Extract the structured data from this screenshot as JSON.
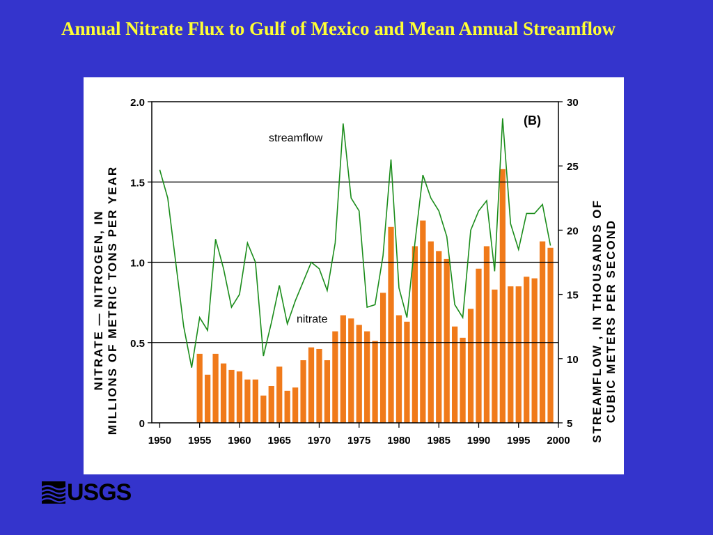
{
  "slide": {
    "title": "Annual Nitrate Flux to Gulf of Mexico and Mean Annual Streamflow"
  },
  "logo": {
    "text": "USGS",
    "icon": "usgs-wave-icon"
  },
  "colors": {
    "background": "#3434cc",
    "title": "#ffff33",
    "bar": "#f07a1a",
    "line": "#1a8c1a"
  },
  "chart_data": {
    "type": "bar+line",
    "panel_label": "(B)",
    "annotations": {
      "line_label": "streamflow",
      "bar_label": "nitrate"
    },
    "y_left": {
      "label_line1": "NITRATE — NITROGEN, IN",
      "label_line2": "MILLIONS OF METRIC TONS PER YEAR",
      "lim": [
        0,
        2.0
      ],
      "ticks": [
        0,
        0.5,
        1.0,
        1.5,
        2.0
      ],
      "tick_labels": [
        "0",
        "0.5",
        "1.0",
        "1.5",
        "2.0"
      ]
    },
    "y_right": {
      "label_line1": "STREAMFLOW , IN THOUSANDS OF",
      "label_line2": "CUBIC METERS PER SECOND",
      "lim": [
        5,
        30
      ],
      "ticks": [
        5,
        10,
        15,
        20,
        25,
        30
      ],
      "tick_labels": [
        "5",
        "10",
        "15",
        "20",
        "25",
        "30"
      ]
    },
    "x": {
      "lim": [
        1949,
        2000
      ],
      "ticks": [
        1950,
        1955,
        1960,
        1965,
        1970,
        1975,
        1980,
        1985,
        1990,
        1995,
        2000
      ],
      "tick_labels": [
        "1950",
        "1955",
        "1960",
        "1965",
        "1970",
        "1975",
        "1980",
        "1985",
        "1990",
        "1995",
        "2000"
      ]
    },
    "gridlines_y_left": [
      0.5,
      1.0,
      1.5
    ],
    "nitrate": {
      "years": [
        1955,
        1956,
        1957,
        1958,
        1959,
        1960,
        1961,
        1962,
        1963,
        1964,
        1965,
        1966,
        1967,
        1968,
        1969,
        1970,
        1971,
        1972,
        1973,
        1974,
        1975,
        1976,
        1977,
        1978,
        1979,
        1980,
        1981,
        1982,
        1983,
        1984,
        1985,
        1986,
        1987,
        1988,
        1989,
        1990,
        1991,
        1992,
        1993,
        1994,
        1995,
        1996,
        1997,
        1998,
        1999
      ],
      "values": [
        0.43,
        0.3,
        0.43,
        0.37,
        0.33,
        0.32,
        0.27,
        0.27,
        0.17,
        0.23,
        0.35,
        0.2,
        0.22,
        0.39,
        0.47,
        0.46,
        0.39,
        0.57,
        0.67,
        0.65,
        0.61,
        0.57,
        0.51,
        0.81,
        1.22,
        0.67,
        0.63,
        1.1,
        1.26,
        1.13,
        1.07,
        1.02,
        0.6,
        0.53,
        0.71,
        0.96,
        1.1,
        0.83,
        1.58,
        0.85,
        0.85,
        0.91,
        0.9,
        1.13,
        1.09
      ]
    },
    "streamflow": {
      "years": [
        1950,
        1951,
        1952,
        1953,
        1954,
        1955,
        1956,
        1957,
        1958,
        1959,
        1960,
        1961,
        1962,
        1963,
        1964,
        1965,
        1966,
        1967,
        1968,
        1969,
        1970,
        1971,
        1972,
        1973,
        1974,
        1975,
        1976,
        1977,
        1978,
        1979,
        1980,
        1981,
        1982,
        1983,
        1984,
        1985,
        1986,
        1987,
        1988,
        1989,
        1990,
        1991,
        1992,
        1993,
        1994,
        1995,
        1996,
        1997,
        1998,
        1999
      ],
      "values": [
        24.7,
        22.5,
        17.5,
        12.5,
        9.3,
        13.2,
        12.2,
        19.3,
        17.0,
        14.0,
        15.0,
        19.0,
        17.5,
        10.2,
        12.8,
        15.7,
        12.7,
        14.5,
        16.0,
        17.5,
        17.0,
        15.3,
        19.0,
        28.3,
        22.5,
        21.5,
        14.0,
        14.2,
        18.0,
        25.5,
        15.5,
        13.2,
        19.0,
        24.3,
        22.5,
        21.5,
        19.5,
        14.2,
        13.2,
        20.0,
        21.5,
        22.3,
        16.8,
        28.7,
        20.5,
        18.5,
        21.3,
        21.3,
        22.0,
        18.8
      ]
    }
  }
}
